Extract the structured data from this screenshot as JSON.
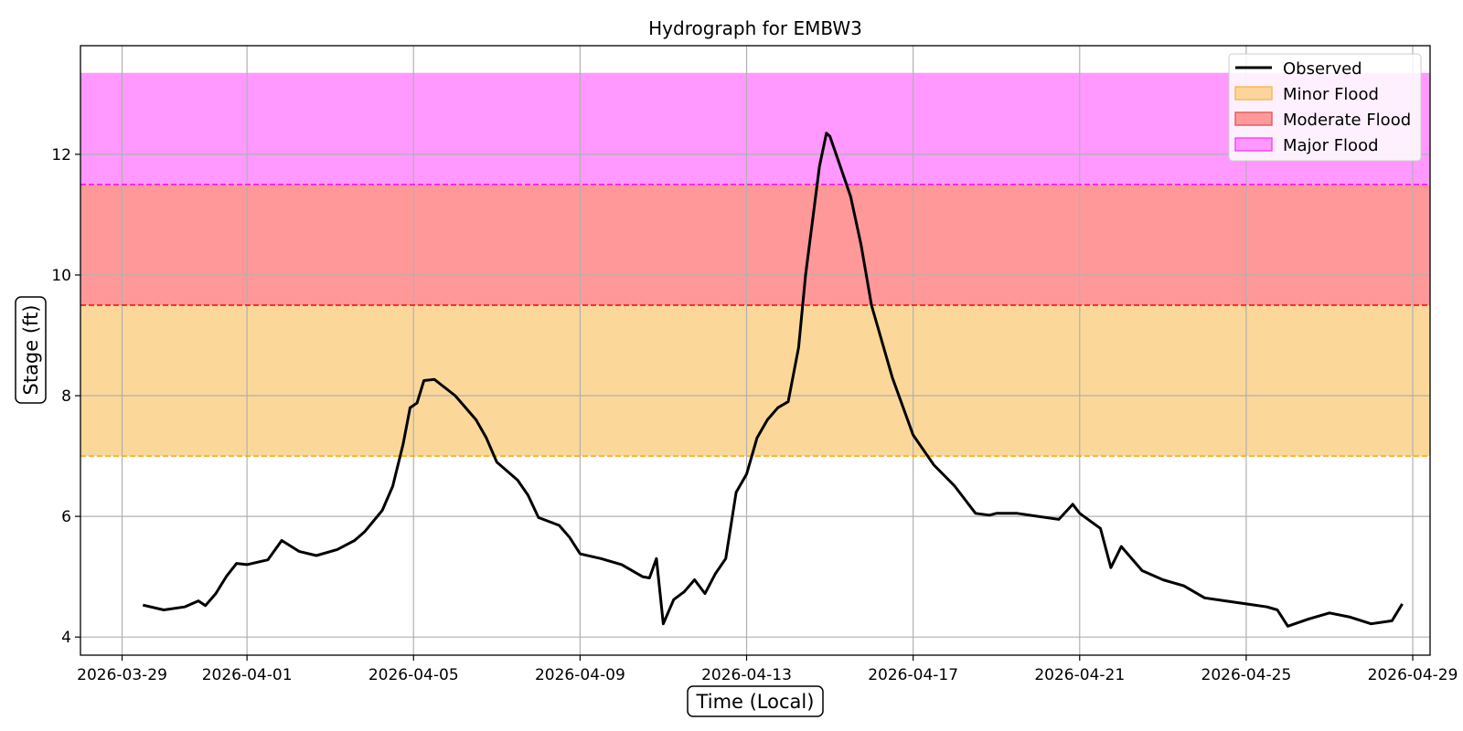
{
  "chart_data": {
    "type": "line",
    "title": "Hydrograph for EMBW3",
    "xlabel": "Time (Local)",
    "ylabel": "Stage (ft)",
    "xlim": [
      "2026-03-28",
      "2026-04-29 10:00"
    ],
    "ylim": [
      3.7,
      13.8
    ],
    "grid": true,
    "legend_position": "top-right",
    "x_ticks": [
      "2026-03-29",
      "2026-04-01",
      "2026-04-05",
      "2026-04-09",
      "2026-04-13",
      "2026-04-17",
      "2026-04-21",
      "2026-04-25",
      "2026-04-29"
    ],
    "y_ticks": [
      4,
      6,
      8,
      10,
      12
    ],
    "flood_bands": [
      {
        "name": "Minor Flood",
        "from": 7.0,
        "to": 9.5,
        "fill": "#fbd89a",
        "line": "#ffa500"
      },
      {
        "name": "Moderate Flood",
        "from": 9.5,
        "to": 11.5,
        "fill": "#ff9999",
        "line": "#ff0000"
      },
      {
        "name": "Major Flood",
        "from": 11.5,
        "to": 13.35,
        "fill": "#ff99ff",
        "line": "#ff00ff"
      }
    ],
    "series": [
      {
        "name": "Observed",
        "color": "#000000",
        "x": [
          "2026-03-29 12:00",
          "2026-03-30 00:00",
          "2026-03-30 12:00",
          "2026-03-30 20:00",
          "2026-03-31 00:00",
          "2026-03-31 06:00",
          "2026-03-31 12:00",
          "2026-03-31 18:00",
          "2026-04-01 00:00",
          "2026-04-01 12:00",
          "2026-04-01 20:00",
          "2026-04-02 06:00",
          "2026-04-02 16:00",
          "2026-04-03 04:00",
          "2026-04-03 14:00",
          "2026-04-03 20:00",
          "2026-04-04 06:00",
          "2026-04-04 12:00",
          "2026-04-04 18:00",
          "2026-04-04 22:00",
          "2026-04-05 02:00",
          "2026-04-05 06:00",
          "2026-04-05 12:00",
          "2026-04-06 00:00",
          "2026-04-06 12:00",
          "2026-04-06 18:00",
          "2026-04-07 00:00",
          "2026-04-07 12:00",
          "2026-04-07 18:00",
          "2026-04-08 00:00",
          "2026-04-08 12:00",
          "2026-04-08 18:00",
          "2026-04-09 00:00",
          "2026-04-09 12:00",
          "2026-04-10 00:00",
          "2026-04-10 12:00",
          "2026-04-10 16:00",
          "2026-04-10 20:00",
          "2026-04-11 00:00",
          "2026-04-11 06:00",
          "2026-04-11 12:00",
          "2026-04-11 18:00",
          "2026-04-12 00:00",
          "2026-04-12 06:00",
          "2026-04-12 12:00",
          "2026-04-12 18:00",
          "2026-04-13 00:00",
          "2026-04-13 06:00",
          "2026-04-13 12:00",
          "2026-04-13 18:00",
          "2026-04-14 00:00",
          "2026-04-14 06:00",
          "2026-04-14 10:00",
          "2026-04-14 14:00",
          "2026-04-14 18:00",
          "2026-04-14 22:00",
          "2026-04-15 00:00",
          "2026-04-15 06:00",
          "2026-04-15 12:00",
          "2026-04-15 18:00",
          "2026-04-16 00:00",
          "2026-04-16 12:00",
          "2026-04-17 00:00",
          "2026-04-17 12:00",
          "2026-04-18 00:00",
          "2026-04-18 12:00",
          "2026-04-18 20:00",
          "2026-04-19 00:00",
          "2026-04-19 12:00",
          "2026-04-20 00:00",
          "2026-04-20 12:00",
          "2026-04-20 20:00",
          "2026-04-21 00:00",
          "2026-04-21 12:00",
          "2026-04-21 18:00",
          "2026-04-22 00:00",
          "2026-04-22 12:00",
          "2026-04-23 00:00",
          "2026-04-23 12:00",
          "2026-04-24 00:00",
          "2026-04-24 12:00",
          "2026-04-25 00:00",
          "2026-04-25 12:00",
          "2026-04-25 18:00",
          "2026-04-26 00:00",
          "2026-04-26 12:00",
          "2026-04-27 00:00",
          "2026-04-27 12:00",
          "2026-04-28 00:00",
          "2026-04-28 12:00",
          "2026-04-28 18:00"
        ],
        "y": [
          4.53,
          4.45,
          4.5,
          4.6,
          4.52,
          4.72,
          5.0,
          5.22,
          5.2,
          5.28,
          5.6,
          5.42,
          5.35,
          5.45,
          5.6,
          5.75,
          6.1,
          6.5,
          7.2,
          7.8,
          7.88,
          8.25,
          8.27,
          8.0,
          7.6,
          7.3,
          6.9,
          6.6,
          6.35,
          5.98,
          5.85,
          5.65,
          5.38,
          5.3,
          5.2,
          5.0,
          4.98,
          5.3,
          4.22,
          4.62,
          4.75,
          4.95,
          4.72,
          5.05,
          5.3,
          6.4,
          6.7,
          7.3,
          7.6,
          7.8,
          7.9,
          8.8,
          10.0,
          10.9,
          11.8,
          12.35,
          12.3,
          11.8,
          11.3,
          10.5,
          9.5,
          8.3,
          7.35,
          6.85,
          6.5,
          6.05,
          6.02,
          6.05,
          6.05,
          6.0,
          5.95,
          6.2,
          6.05,
          5.8,
          5.15,
          5.5,
          5.1,
          4.95,
          4.85,
          4.65,
          4.6,
          4.55,
          4.5,
          4.45,
          4.18,
          4.3,
          4.4,
          4.33,
          4.22,
          4.27,
          4.55
        ]
      }
    ]
  },
  "legend": {
    "observed": "Observed",
    "minor": "Minor Flood",
    "moderate": "Moderate Flood",
    "major": "Major Flood"
  }
}
